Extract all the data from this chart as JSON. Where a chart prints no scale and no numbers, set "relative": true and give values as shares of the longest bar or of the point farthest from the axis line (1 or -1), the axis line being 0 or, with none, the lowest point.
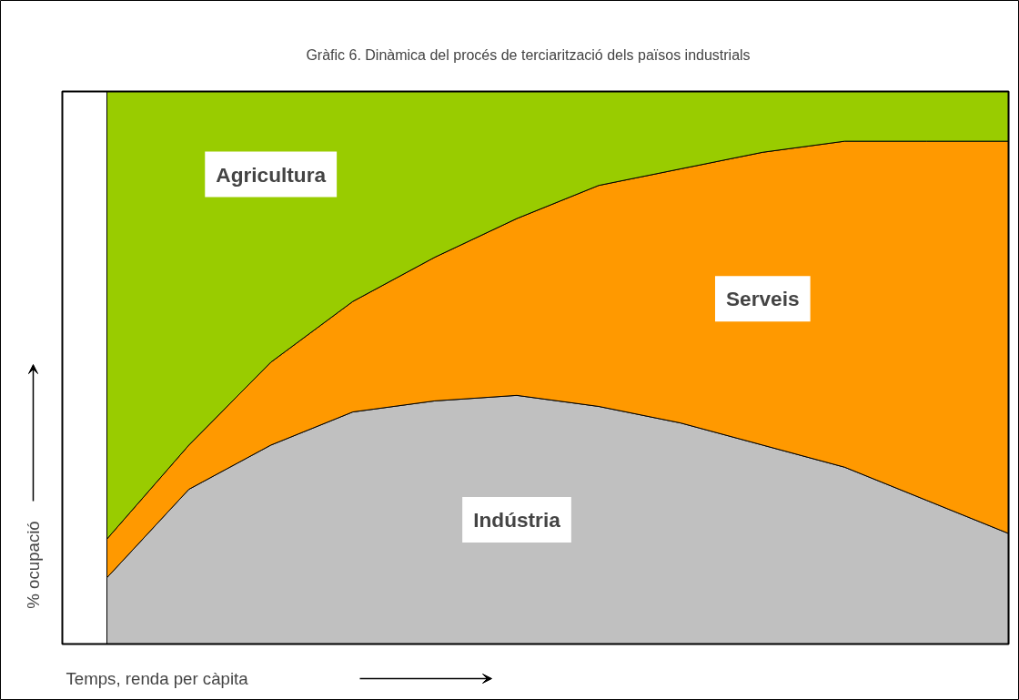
{
  "chart_data": {
    "type": "area",
    "stacked": true,
    "relative": true,
    "title": "Gràfic 6. Dinàmica del procés de terciarització dels països industrials",
    "xlabel": "Temps, renda per càpita",
    "ylabel": "% ocupació",
    "categories": [
      null,
      null,
      null,
      null,
      null,
      null,
      null,
      null,
      null,
      null,
      null,
      null
    ],
    "series": [
      {
        "name": "Indústria",
        "color": "#c0c0c0",
        "values": [
          0.12,
          0.28,
          0.36,
          0.42,
          0.44,
          0.45,
          0.43,
          0.4,
          0.36,
          0.32,
          0.26,
          0.2
        ]
      },
      {
        "name": "Serveis",
        "color": "#ff9900",
        "values": [
          0.07,
          0.08,
          0.15,
          0.2,
          0.26,
          0.32,
          0.4,
          0.46,
          0.53,
          0.59,
          0.65,
          0.71
        ]
      },
      {
        "name": "Agricultura",
        "color": "#99cc00",
        "values": [
          0.81,
          0.64,
          0.49,
          0.38,
          0.3,
          0.23,
          0.17,
          0.14,
          0.11,
          0.09,
          0.09,
          0.09
        ]
      }
    ],
    "grid": false,
    "legend": false
  }
}
